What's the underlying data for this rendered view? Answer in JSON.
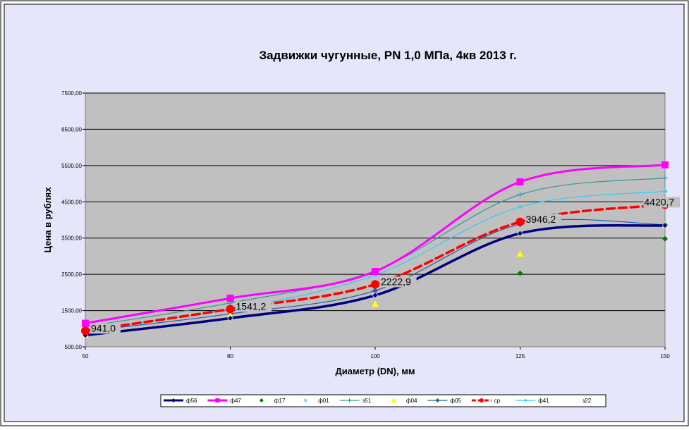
{
  "chart_data": {
    "type": "line",
    "title": "Задвижки чугунные, PN 1,0 МПа, 4кв 2013 г.",
    "xlabel": "Диаметр (DN), мм",
    "ylabel": "Цена в рублях",
    "categories": [
      "50",
      "80",
      "100",
      "125",
      "150"
    ],
    "y_ticks": [
      "500,00",
      "1500,00",
      "2500,00",
      "3500,00",
      "4500,00",
      "5500,00",
      "6500,00",
      "7500,00"
    ],
    "ylim": [
      500,
      7500
    ],
    "grid": true,
    "legend_position": "bottom",
    "colors": {
      "chart_bg": "#E6E6FA",
      "plot_bg": "#C0C0C0"
    },
    "series": [
      {
        "name": "ф56",
        "values": [
          820,
          1290,
          1920,
          3630,
          3850
        ],
        "color": "#000080",
        "width": 3.5,
        "marker": "diamond",
        "smooth": true,
        "dash": ""
      },
      {
        "name": "ф47",
        "values": [
          1150,
          1840,
          2580,
          5050,
          5520
        ],
        "color": "#FF00FF",
        "width": 3,
        "marker": "square",
        "smooth": true,
        "dash": ""
      },
      {
        "name": "ф17",
        "values": [
          null,
          null,
          null,
          2530,
          3480
        ],
        "color": "#008000",
        "width": 0,
        "marker": "diamond",
        "smooth": false,
        "dash": ""
      },
      {
        "name": "ф01",
        "values": [
          null,
          null,
          2430,
          3900,
          4790
        ],
        "color": "#99CCFF",
        "width": 0,
        "marker": "diamond",
        "smooth": false,
        "dash": ""
      },
      {
        "name": "з51",
        "values": [
          1060,
          1710,
          2600,
          4700,
          5160
        ],
        "color": "#339999",
        "width": 1.2,
        "marker": "plus",
        "smooth": true,
        "dash": ""
      },
      {
        "name": "ф04",
        "values": [
          820,
          1380,
          1680,
          3060,
          3860
        ],
        "color": "#FFFF00",
        "width": 0,
        "marker": "triangle",
        "smooth": false,
        "dash": ""
      },
      {
        "name": "ф05",
        "values": [
          930,
          1410,
          2050,
          3880,
          3870
        ],
        "color": "#1F5FA8",
        "width": 1.2,
        "marker": "diamond",
        "smooth": true,
        "dash": ""
      },
      {
        "name": "ср.",
        "values": [
          941.0,
          1541.2,
          2222.9,
          3946.2,
          4420.7
        ],
        "color": "#FF0000",
        "width": 3.5,
        "marker": "circle",
        "smooth": true,
        "dash": "11,6"
      },
      {
        "name": "ф41",
        "values": [
          980,
          1530,
          2480,
          4360,
          4790
        ],
        "color": "#33CCFF",
        "width": 1.2,
        "marker": "dot",
        "smooth": true,
        "dash": ""
      },
      {
        "name": "з22",
        "values": [
          null,
          null,
          null,
          null,
          null
        ],
        "color": "#FFFFFF",
        "width": 1,
        "marker": "dot",
        "smooth": true,
        "dash": ""
      }
    ],
    "data_labels": [
      "941,0",
      "1541,2",
      "2222,9",
      "3946,2",
      "4420,7"
    ]
  }
}
